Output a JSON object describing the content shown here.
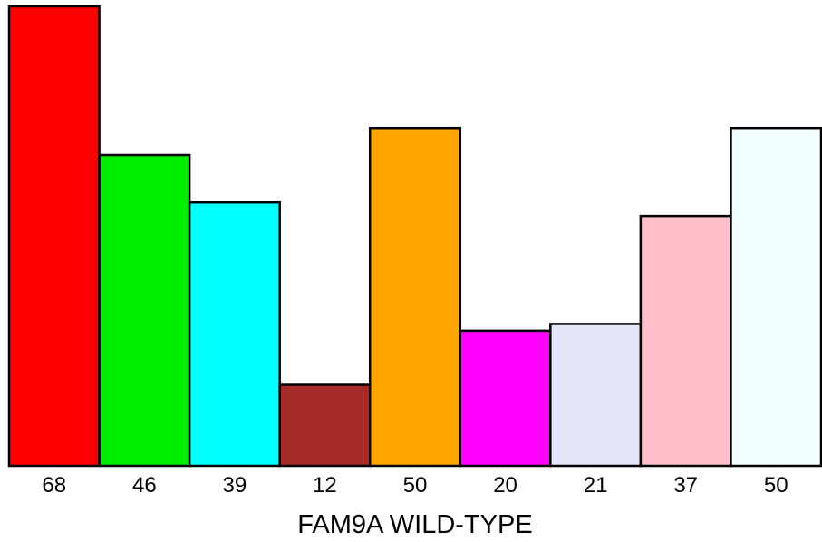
{
  "chart_data": {
    "type": "bar",
    "categories": [
      "68",
      "46",
      "39",
      "12",
      "50",
      "20",
      "21",
      "37",
      "50"
    ],
    "values": [
      68,
      46,
      39,
      12,
      50,
      20,
      21,
      37,
      50
    ],
    "colors": [
      "#ff0000",
      "#00ee00",
      "#00ffff",
      "#a52a2a",
      "#ffa500",
      "#ff00ff",
      "#e6e6fa",
      "#ffc0cb",
      "#f0ffff"
    ],
    "xlabel": "FAM9A WILD-TYPE",
    "ylim": [
      0,
      68
    ],
    "grid": false,
    "legend": "none"
  }
}
